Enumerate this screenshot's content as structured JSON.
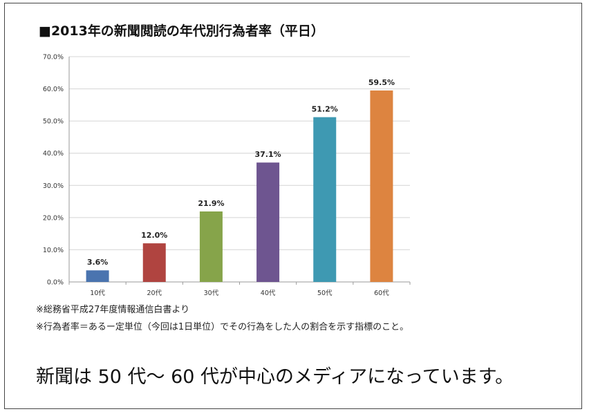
{
  "chart_data": {
    "type": "bar",
    "title": "■2013年の新聞閲読の年代別行為者率（平日）",
    "categories": [
      "10代",
      "20代",
      "30代",
      "40代",
      "50代",
      "60代"
    ],
    "values": [
      3.6,
      12.0,
      21.9,
      37.1,
      51.2,
      59.5
    ],
    "value_labels": [
      "3.6%",
      "12.0%",
      "21.9%",
      "37.1%",
      "51.2%",
      "59.5%"
    ],
    "bar_colors": [
      "#4A74AF",
      "#B04440",
      "#86A44A",
      "#6E5590",
      "#3E99B2",
      "#DD8440"
    ],
    "ylim": [
      0,
      70
    ],
    "yticks": [
      "0.0%",
      "10.0%",
      "20.0%",
      "30.0%",
      "40.0%",
      "50.0%",
      "60.0%",
      "70.0%"
    ],
    "grid": true,
    "xlabel": "",
    "ylabel": ""
  },
  "notes": {
    "source": "※総務省平成27年度情報通信白書より",
    "definition": "※行為者率＝あるー定単位（今回は1日単位）でその行為をした人の割合を示す指標のこと。"
  },
  "caption": "新聞は 50 代〜 60 代が中心のメディアになっています。"
}
